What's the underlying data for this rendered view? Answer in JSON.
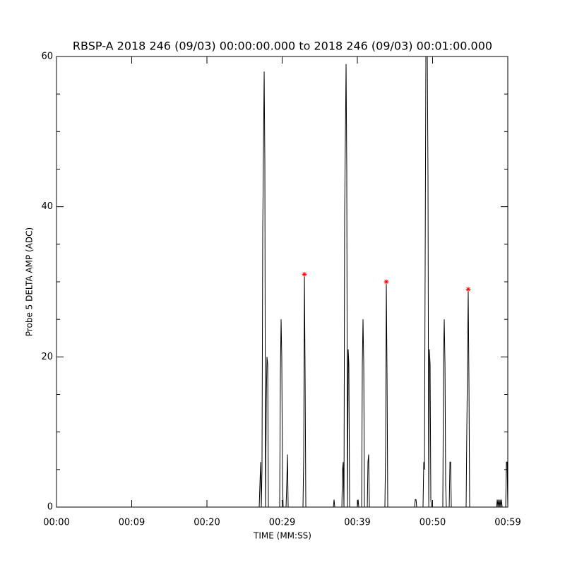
{
  "chart_data": {
    "type": "line",
    "title": "RBSP-A 2018 246 (09/03) 00:00:00.000 to 2018 246 (09/03) 00:01:00.000",
    "x_label": "TIME (MM:SS)",
    "y_label": "Probe 5 DELTA AMP (ADC)",
    "xlim": [
      0,
      60
    ],
    "ylim": [
      0,
      60
    ],
    "xticks": [
      {
        "value": 0,
        "label": "00:00"
      },
      {
        "value": 10,
        "label": "00:09"
      },
      {
        "value": 20,
        "label": "00:20"
      },
      {
        "value": 30,
        "label": "00:29"
      },
      {
        "value": 40,
        "label": "00:39"
      },
      {
        "value": 50,
        "label": "00:50"
      },
      {
        "value": 60,
        "label": "00:59"
      }
    ],
    "yticks": [
      0,
      20,
      40,
      60
    ],
    "yminorticks": [
      5,
      10,
      15,
      25,
      30,
      35,
      45,
      50,
      55
    ],
    "series": [
      {
        "color": "#000000",
        "x": [
          0,
          26.95,
          27.14,
          27.23,
          27.32,
          27.42,
          27.61,
          27.7,
          27.79,
          27.89,
          27.98,
          28.08,
          28.17,
          29.67,
          29.77,
          29.86,
          29.95,
          30.05,
          30.14,
          30.52,
          30.61,
          30.71,
          30.8,
          32.77,
          32.87,
          32.96,
          33.05,
          33.15,
          36.81,
          36.9,
          37.0,
          37.94,
          38.03,
          38.12,
          38.22,
          38.31,
          38.5,
          38.59,
          38.69,
          38.78,
          38.87,
          38.97,
          40.0,
          40.1,
          40.19,
          40.57,
          40.66,
          40.75,
          40.85,
          40.94,
          41.32,
          41.41,
          41.5,
          41.6,
          43.66,
          43.76,
          43.85,
          43.95,
          44.04,
          47.61,
          47.7,
          47.8,
          47.89,
          48.73,
          48.83,
          48.92,
          49.11,
          49.3,
          49.39,
          49.49,
          49.58,
          49.67,
          49.77,
          49.86,
          51.36,
          51.46,
          51.55,
          51.65,
          51.74,
          51.83,
          52.21,
          52.31,
          52.4,
          52.49,
          54.46,
          54.55,
          54.74,
          54.84,
          54.93,
          58.5,
          58.6,
          58.69,
          58.78,
          58.88,
          58.97,
          59.06,
          59.16,
          59.25,
          59.35,
          59.72,
          59.81,
          59.91,
          60.0
        ],
        "values": [
          0,
          0,
          6,
          0,
          5,
          37,
          58,
          46,
          0,
          14,
          20,
          19,
          0,
          0,
          18,
          25,
          20,
          3,
          0,
          0,
          3,
          7,
          0,
          0,
          7,
          31,
          18,
          0,
          0,
          1,
          0,
          0,
          5,
          6,
          0,
          39,
          59,
          45,
          0,
          21,
          19,
          0,
          0,
          1,
          0,
          0,
          19,
          25,
          19,
          0,
          0,
          6,
          7,
          0,
          0,
          8,
          30,
          17,
          0,
          0,
          1,
          1,
          0,
          0,
          6,
          5,
          60,
          60,
          44,
          0,
          21,
          19,
          1,
          0,
          0,
          20,
          25,
          19,
          3,
          0,
          0,
          6,
          6,
          0,
          0,
          10,
          29,
          16,
          0,
          0,
          1,
          0,
          1,
          0,
          1,
          0,
          1,
          0,
          0,
          0,
          6,
          6,
          0
        ]
      },
      {
        "color": "#ff0000",
        "marker": "asterisk",
        "x": [
          32.96,
          43.85,
          54.74
        ],
        "values": [
          31,
          30,
          29
        ]
      }
    ]
  }
}
